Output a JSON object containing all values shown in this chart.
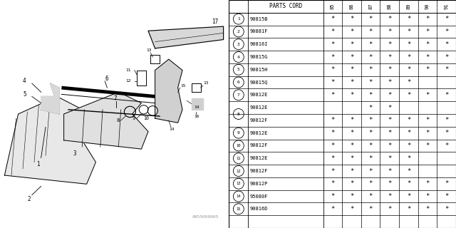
{
  "watermark": "A955000065",
  "table_header_years": [
    "85",
    "86",
    "87",
    "88",
    "89",
    "90",
    "91"
  ],
  "rows": [
    {
      "num": "1",
      "part": "90815B",
      "cols": [
        1,
        1,
        1,
        1,
        1,
        1,
        1
      ],
      "show_num": true,
      "span": 1
    },
    {
      "num": "2",
      "part": "90881F",
      "cols": [
        1,
        1,
        1,
        1,
        1,
        1,
        1
      ],
      "show_num": true,
      "span": 1
    },
    {
      "num": "3",
      "part": "90816I",
      "cols": [
        1,
        1,
        1,
        1,
        1,
        1,
        1
      ],
      "show_num": true,
      "span": 1
    },
    {
      "num": "4",
      "part": "90815G",
      "cols": [
        1,
        1,
        1,
        1,
        1,
        1,
        1
      ],
      "show_num": true,
      "span": 1
    },
    {
      "num": "5",
      "part": "90815H",
      "cols": [
        1,
        1,
        1,
        1,
        1,
        1,
        1
      ],
      "show_num": true,
      "span": 1
    },
    {
      "num": "6",
      "part": "90815Q",
      "cols": [
        1,
        1,
        1,
        1,
        1,
        0,
        0
      ],
      "show_num": true,
      "span": 1
    },
    {
      "num": "7",
      "part": "90812E",
      "cols": [
        1,
        1,
        1,
        1,
        1,
        1,
        1
      ],
      "show_num": true,
      "span": 1
    },
    {
      "num": "8",
      "part": "90812E",
      "cols": [
        0,
        0,
        1,
        1,
        0,
        0,
        0
      ],
      "show_num": true,
      "span": 2
    },
    {
      "num": "",
      "part": "90812F",
      "cols": [
        1,
        1,
        1,
        1,
        1,
        1,
        1
      ],
      "show_num": false,
      "span": 1
    },
    {
      "num": "9",
      "part": "90812E",
      "cols": [
        1,
        1,
        1,
        1,
        1,
        1,
        1
      ],
      "show_num": true,
      "span": 1
    },
    {
      "num": "10",
      "part": "90812F",
      "cols": [
        1,
        1,
        1,
        1,
        1,
        1,
        1
      ],
      "show_num": true,
      "span": 1
    },
    {
      "num": "11",
      "part": "90812E",
      "cols": [
        1,
        1,
        1,
        1,
        1,
        0,
        0
      ],
      "show_num": true,
      "span": 1
    },
    {
      "num": "12",
      "part": "90812F",
      "cols": [
        1,
        1,
        1,
        1,
        1,
        0,
        0
      ],
      "show_num": true,
      "span": 1
    },
    {
      "num": "13",
      "part": "90812P",
      "cols": [
        1,
        1,
        1,
        1,
        1,
        1,
        1
      ],
      "show_num": true,
      "span": 1
    },
    {
      "num": "14",
      "part": "95080F",
      "cols": [
        1,
        1,
        1,
        1,
        1,
        1,
        1
      ],
      "show_num": true,
      "span": 1
    },
    {
      "num": "15",
      "part": "90816D",
      "cols": [
        1,
        1,
        1,
        1,
        1,
        1,
        1
      ],
      "show_num": true,
      "span": 1
    }
  ],
  "bg_color": "#ffffff",
  "line_color": "#000000",
  "text_color": "#000000",
  "gray_color": "#cccccc"
}
